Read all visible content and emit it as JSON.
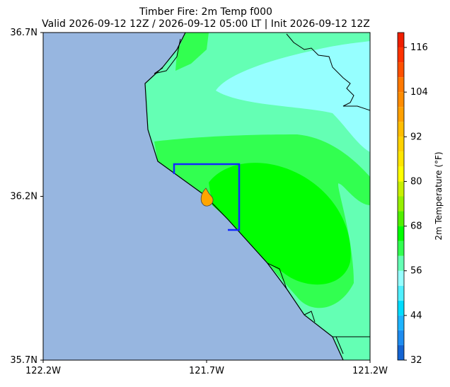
{
  "title": [
    "Timber Fire: 2m Temp f000",
    "Valid 2026-09-12 12Z / 2026-09-12 05:00 LT | Init 2026-09-12 12Z"
  ],
  "map": {
    "xlim": [
      -122.2,
      -121.2
    ],
    "ylim": [
      35.7,
      36.7
    ],
    "xticks": [
      {
        "value": -122.2,
        "label": "122.2W"
      },
      {
        "value": -121.7,
        "label": "121.7W"
      },
      {
        "value": -121.2,
        "label": "121.2W"
      }
    ],
    "yticks": [
      {
        "value": 35.7,
        "label": "35.7N"
      },
      {
        "value": 36.2,
        "label": "36.2N"
      },
      {
        "value": 36.7,
        "label": "36.7N"
      }
    ]
  },
  "colorbar": {
    "label": "2m Temperature (°F)",
    "lim": [
      32,
      120
    ],
    "bounds": [
      32,
      36,
      40,
      44,
      48,
      52,
      56,
      60,
      64,
      68,
      72,
      76,
      80,
      84,
      88,
      92,
      96,
      100,
      104,
      108,
      112,
      116,
      120
    ],
    "colors": [
      "#1464d2",
      "#1e8cf0",
      "#1eb4ff",
      "#00dcff",
      "#50f0ff",
      "#96ffff",
      "#64ffb4",
      "#32ff50",
      "#00ff00",
      "#50f000",
      "#96f000",
      "#c8f000",
      "#ffff00",
      "#ffe600",
      "#ffd200",
      "#ffbe00",
      "#ffa000",
      "#ff8c00",
      "#ff7800",
      "#ff5000",
      "#ff3200",
      "#f01e00"
    ],
    "ticks": [
      32,
      44,
      56,
      68,
      80,
      92,
      104,
      116
    ]
  }
}
